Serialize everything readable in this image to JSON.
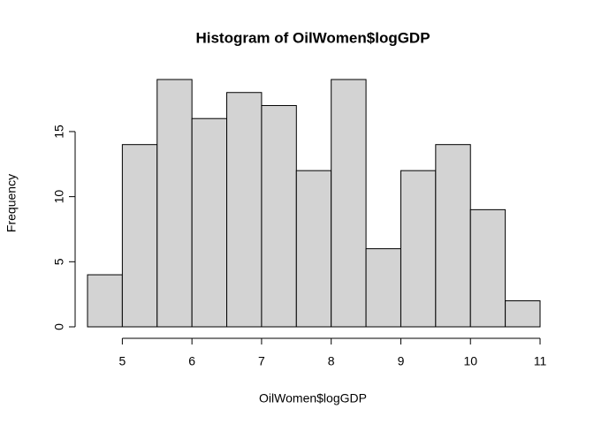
{
  "chart_data": {
    "type": "histogram",
    "title": "Histogram of OilWomen$logGDP",
    "x_label": "OilWomen$logGDP",
    "y_label": "Frequency",
    "bins": [
      4.5,
      5,
      5.5,
      6,
      6.5,
      7,
      7.5,
      8,
      8.5,
      9,
      9.5,
      10,
      10.5,
      11
    ],
    "values": [
      4,
      14,
      19,
      16,
      18,
      17,
      12,
      19,
      6,
      12,
      14,
      9,
      2
    ],
    "color": "#d3d3d3",
    "xlim": [
      4.5,
      11
    ],
    "xticks": [
      5,
      6,
      7,
      8,
      9,
      10,
      11
    ],
    "ylim": [
      0,
      19
    ],
    "yticks": [
      0,
      5,
      10,
      15
    ]
  }
}
